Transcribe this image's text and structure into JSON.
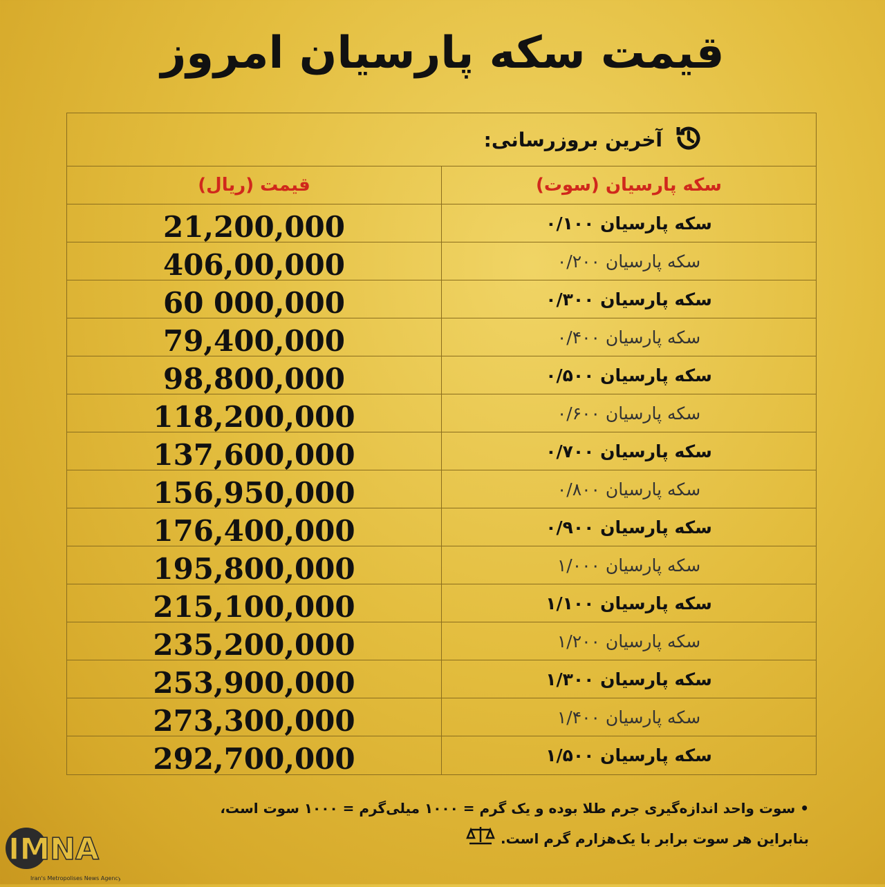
{
  "title": "قیمت سکه پارسیان امروز",
  "update_label": "آخرین بروزرسانی:",
  "table": {
    "headers": {
      "price": "قیمت (ریال)",
      "name": "سکه پارسیان (سوت)"
    },
    "rows": [
      {
        "name": "سکه پارسیان ۰/۱۰۰",
        "price": "21,200,000"
      },
      {
        "name": "سکه پارسیان ۰/۲۰۰",
        "price": "406,00,000"
      },
      {
        "name": "سکه پارسیان ۰/۳۰۰",
        "price": "60 000,000"
      },
      {
        "name": "سکه پارسیان ۰/۴۰۰",
        "price": "79,400,000"
      },
      {
        "name": "سکه پارسیان ۰/۵۰۰",
        "price": "98,800,000"
      },
      {
        "name": "سکه پارسیان ۰/۶۰۰",
        "price": "118,200,000"
      },
      {
        "name": "سکه پارسیان ۰/۷۰۰",
        "price": "137,600,000"
      },
      {
        "name": "سکه پارسیان ۰/۸۰۰",
        "price": "156,950,000"
      },
      {
        "name": "سکه پارسیان ۰/۹۰۰",
        "price": "176,400,000"
      },
      {
        "name": "سکه پارسیان ۱/۰۰۰",
        "price": "195,800,000"
      },
      {
        "name": "سکه پارسیان ۱/۱۰۰",
        "price": "215,100,000"
      },
      {
        "name": "سکه پارسیان ۱/۲۰۰",
        "price": "235,200,000"
      },
      {
        "name": "سکه پارسیان ۱/۳۰۰",
        "price": "253,900,000"
      },
      {
        "name": "سکه پارسیان ۱/۴۰۰",
        "price": "273,300,000"
      },
      {
        "name": "سکه پارسیان ۱/۵۰۰",
        "price": "292,700,000"
      }
    ]
  },
  "note": {
    "line1": "سوت واحد اندازه‌گیری جرم طلا بوده و یک گرم = ۱۰۰۰ میلی‌گرم = ۱۰۰۰ سوت است،",
    "line2": "بنابراین هر سوت برابر با یک‌هزارم گرم است."
  },
  "logo": {
    "text": "IMNA",
    "tagline": "Iran's Metropolises News Agency"
  },
  "icons": {
    "update": "clock-history-icon",
    "note": "scale-icon"
  },
  "colors": {
    "header_text": "#d0281c",
    "background": "#e3bd3e"
  }
}
